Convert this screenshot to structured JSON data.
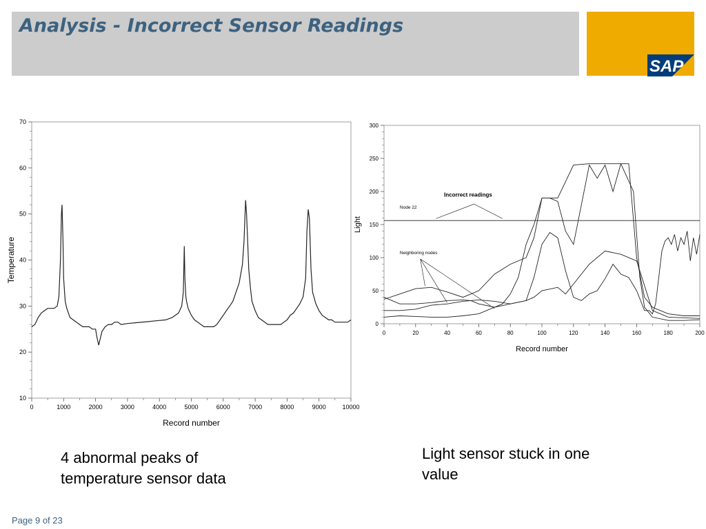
{
  "slide": {
    "title": "Analysis - Incorrect Sensor Readings",
    "logo_text": "SAP",
    "caption_left_line1": "4 abnormal peaks of",
    "caption_left_line2": "temperature sensor data",
    "caption_right_line1": "Light sensor stuck in one",
    "caption_right_line2": "value",
    "page_label": "Page 9 of 23"
  },
  "colors": {
    "title": "#3d6280",
    "header_band": "#cccccc",
    "logo_block": "#f0ab00",
    "logo_badge": "#003d7a"
  },
  "chart_data": [
    {
      "type": "line",
      "title": "",
      "xlabel": "Record number",
      "ylabel": "Temperature",
      "xlim": [
        0,
        10000
      ],
      "ylim": [
        10,
        70
      ],
      "xticks": [
        0,
        1000,
        2000,
        3000,
        4000,
        5000,
        6000,
        7000,
        8000,
        9000,
        10000
      ],
      "yticks": [
        10,
        20,
        30,
        40,
        50,
        60,
        70
      ],
      "grid": false,
      "series": [
        {
          "x": [
            0,
            100,
            200,
            300,
            400,
            500,
            600,
            700,
            800,
            850,
            900,
            930,
            950,
            980,
            1000,
            1050,
            1100,
            1150,
            1200,
            1300,
            1400,
            1500,
            1600,
            1700,
            1800,
            1900,
            2000,
            2050,
            2100,
            2150,
            2200,
            2300,
            2400,
            2500,
            2600,
            2700,
            2800,
            3000,
            3300,
            3600,
            3900,
            4200,
            4400,
            4500,
            4600,
            4700,
            4750,
            4780,
            4800,
            4830,
            4850,
            4900,
            5000,
            5100,
            5200,
            5300,
            5400,
            5500,
            5600,
            5700,
            5800,
            5900,
            6000,
            6100,
            6200,
            6300,
            6400,
            6500,
            6600,
            6650,
            6700,
            6730,
            6760,
            6800,
            6850,
            6900,
            7000,
            7100,
            7200,
            7300,
            7400,
            7500,
            7600,
            7700,
            7800,
            7900,
            8000,
            8100,
            8200,
            8300,
            8400,
            8500,
            8580,
            8620,
            8660,
            8700,
            8750,
            8800,
            8900,
            9000,
            9100,
            9200,
            9300,
            9400,
            9500,
            9600,
            9700,
            9800,
            9900,
            10000
          ],
          "y": [
            25.5,
            26,
            27.5,
            28.5,
            29,
            29.5,
            29.5,
            29.5,
            30,
            32,
            40,
            50,
            52,
            44,
            36,
            31,
            29.5,
            28.5,
            27.5,
            27,
            26.5,
            26,
            25.5,
            25.5,
            25.5,
            25,
            25,
            23,
            21.5,
            23,
            24.5,
            25.5,
            26,
            26,
            26.5,
            26.5,
            26,
            26.2,
            26.4,
            26.6,
            26.8,
            27,
            27.5,
            28,
            28.5,
            30,
            33,
            43,
            36,
            32,
            31,
            29.5,
            28,
            27,
            26.5,
            26,
            25.5,
            25.5,
            25.5,
            25.5,
            26,
            27,
            28,
            29,
            30,
            31,
            33,
            35,
            39,
            44,
            53,
            50,
            45,
            38,
            34,
            31,
            29,
            27.5,
            27,
            26.5,
            26,
            26,
            26,
            26,
            26,
            26.5,
            27,
            28,
            28.5,
            29.5,
            30.5,
            32,
            36,
            46,
            51,
            49,
            38,
            33,
            30.5,
            29,
            28,
            27.5,
            27,
            27,
            26.5,
            26.5,
            26.5,
            26.5,
            26.5,
            27
          ]
        }
      ]
    },
    {
      "type": "line",
      "title": "",
      "xlabel": "Record number",
      "ylabel": "Light",
      "xlim": [
        0,
        200
      ],
      "ylim": [
        0,
        300
      ],
      "xticks": [
        0,
        20,
        40,
        60,
        80,
        100,
        120,
        140,
        160,
        180,
        200
      ],
      "yticks": [
        0,
        50,
        100,
        150,
        200,
        250,
        300
      ],
      "grid": false,
      "annotations": [
        {
          "text": "Incorrect readings"
        },
        {
          "text": "Node 22"
        },
        {
          "text": "Neighboring nodes"
        }
      ],
      "series": [
        {
          "name": "Node 22",
          "x": [
            0,
            200
          ],
          "y": [
            156,
            156
          ]
        },
        {
          "x": [
            0,
            10,
            20,
            30,
            40,
            50,
            60,
            70,
            80,
            90,
            95,
            100,
            110,
            120,
            130,
            140,
            150,
            158,
            162,
            165,
            170,
            180,
            190,
            200
          ],
          "y": [
            37,
            45,
            53,
            55,
            48,
            40,
            50,
            75,
            90,
            100,
            130,
            190,
            190,
            240,
            242,
            242,
            242,
            200,
            70,
            25,
            10,
            5,
            5,
            6
          ]
        },
        {
          "x": [
            0,
            10,
            20,
            30,
            40,
            50,
            55,
            60,
            70,
            75,
            80,
            85,
            90,
            95,
            100,
            105,
            110,
            115,
            120,
            125,
            130,
            135,
            140,
            145,
            150,
            155,
            160,
            165,
            170,
            175,
            180,
            190,
            200
          ],
          "y": [
            40,
            30,
            30,
            32,
            35,
            36,
            35,
            30,
            25,
            30,
            45,
            70,
            120,
            150,
            190,
            190,
            185,
            140,
            120,
            180,
            240,
            220,
            240,
            200,
            242,
            242,
            100,
            40,
            25,
            20,
            15,
            12,
            12
          ]
        },
        {
          "x": [
            0,
            10,
            20,
            30,
            40,
            50,
            60,
            70,
            80,
            90,
            95,
            100,
            105,
            110,
            115,
            120,
            125,
            130,
            135,
            140,
            145,
            150,
            155,
            160,
            165,
            168,
            170,
            172,
            174,
            176,
            178,
            180,
            182,
            184,
            186,
            188,
            190,
            192,
            194,
            196,
            198,
            200
          ],
          "y": [
            20,
            20,
            22,
            28,
            30,
            34,
            36,
            34,
            30,
            35,
            70,
            120,
            138,
            130,
            80,
            40,
            35,
            45,
            50,
            68,
            90,
            75,
            70,
            50,
            20,
            20,
            15,
            30,
            70,
            110,
            125,
            130,
            120,
            135,
            110,
            130,
            120,
            140,
            95,
            130,
            105,
            135
          ]
        },
        {
          "x": [
            0,
            10,
            20,
            30,
            40,
            50,
            60,
            65,
            70,
            80,
            90,
            95,
            100,
            110,
            115,
            120,
            130,
            140,
            150,
            160,
            170,
            180,
            200
          ],
          "y": [
            10,
            12,
            11,
            10,
            10,
            12,
            15,
            20,
            25,
            30,
            35,
            40,
            50,
            55,
            45,
            60,
            90,
            110,
            105,
            95,
            20,
            10,
            8
          ]
        }
      ]
    }
  ]
}
